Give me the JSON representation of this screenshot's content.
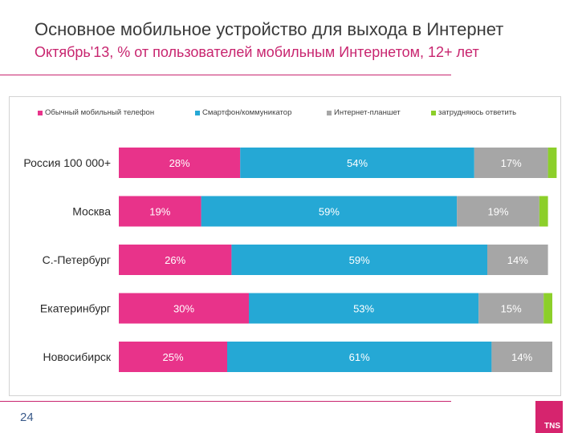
{
  "title": "Основное мобильное устройство для выхода в Интернет",
  "subtitle": "Октябрь'13, % от пользователей мобильным Интернетом, 12+ лет",
  "page_number": "24",
  "logo": "TNS",
  "colors": {
    "accent": "#c8256f",
    "series": [
      "#e8338a",
      "#25a8d5",
      "#a6a6a6",
      "#8ccf2a"
    ]
  },
  "chart_data": {
    "type": "bar",
    "orientation": "horizontal",
    "stacked": true,
    "title": "Основное мобильное устройство для выхода в Интернет",
    "subtitle": "Октябрь'13, % от пользователей мобильным Интернетом, 12+ лет",
    "xlabel": "",
    "ylabel": "",
    "xlim": [
      0,
      100
    ],
    "grid": false,
    "legend_position": "top",
    "categories": [
      "Россия 100 000+",
      "Москва",
      "С.-Петербург",
      "Екатеринбург",
      "Новосибирск"
    ],
    "series": [
      {
        "name": "Обычный мобильный телефон",
        "values": [
          28,
          19,
          26,
          30,
          25
        ],
        "labels": [
          "28%",
          "19%",
          "26%",
          "30%",
          "25%"
        ]
      },
      {
        "name": "Смартфон/коммуникатор",
        "values": [
          54,
          59,
          59,
          53,
          61
        ],
        "labels": [
          "54%",
          "59%",
          "59%",
          "53%",
          "61%"
        ]
      },
      {
        "name": "Интернет-планшет",
        "values": [
          17,
          19,
          14,
          15,
          14
        ],
        "labels": [
          "17%",
          "19%",
          "14%",
          "15%",
          "14%"
        ]
      },
      {
        "name": "затрудняюсь ответить",
        "values": [
          2,
          2,
          0,
          2,
          0
        ],
        "labels": [
          "",
          "",
          "",
          "",
          ""
        ]
      }
    ]
  }
}
